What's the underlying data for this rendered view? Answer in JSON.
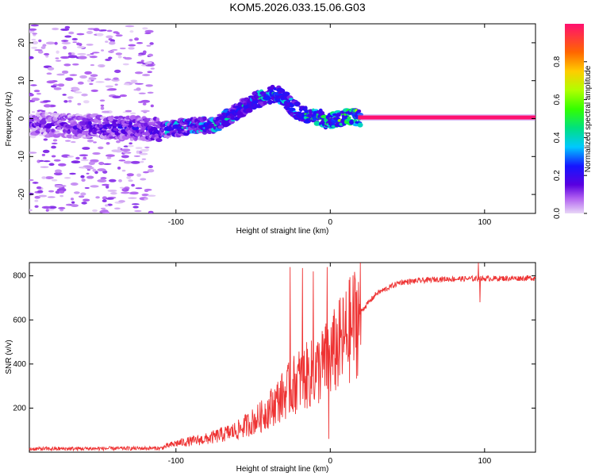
{
  "title": "KOM5.2026.033.15.06.G03",
  "colors": {
    "snr_line": "#ee3333",
    "background": "#ffffff",
    "axis": "#000000"
  },
  "chart_data": [
    {
      "type": "heatmap",
      "name": "spectrogram",
      "xlabel": "Height of straight line (km)",
      "ylabel": "Frequency (Hz)",
      "xlim": [
        -195,
        133
      ],
      "ylim": [
        -25,
        25
      ],
      "xticks": [
        -100,
        0,
        100
      ],
      "xticklabels": [
        "-100",
        "0",
        "100"
      ],
      "yticks": [
        -20,
        -10,
        0,
        10,
        20
      ],
      "yticklabels": [
        "-20",
        "-10",
        "0",
        "10",
        "20"
      ],
      "colorbar": {
        "label": "Normalized spectral amplitude",
        "range": [
          0,
          1
        ],
        "ticks": [
          0,
          0.2,
          0.4,
          0.6,
          0.8
        ],
        "ticklabels": [
          "0.0",
          "0.2",
          "0.4",
          "0.6",
          "0.8"
        ],
        "stops": [
          {
            "v": 0.0,
            "c": "#e9d7f7"
          },
          {
            "v": 0.08,
            "c": "#b060f0"
          },
          {
            "v": 0.15,
            "c": "#5a00e0"
          },
          {
            "v": 0.25,
            "c": "#1515ff"
          },
          {
            "v": 0.35,
            "c": "#00c8ff"
          },
          {
            "v": 0.45,
            "c": "#00e080"
          },
          {
            "v": 0.55,
            "c": "#33ff00"
          },
          {
            "v": 0.65,
            "c": "#b0ff00"
          },
          {
            "v": 0.75,
            "c": "#ffcc00"
          },
          {
            "v": 0.85,
            "c": "#ff6600"
          },
          {
            "v": 1.0,
            "c": "#ff1070"
          }
        ]
      },
      "ridge": [
        {
          "x": -195,
          "f": -1.5
        },
        {
          "x": -160,
          "f": -2
        },
        {
          "x": -130,
          "f": -2.5
        },
        {
          "x": -110,
          "f": -3
        },
        {
          "x": -90,
          "f": -2
        },
        {
          "x": -75,
          "f": -1.5
        },
        {
          "x": -62,
          "f": 1.5
        },
        {
          "x": -52,
          "f": 4
        },
        {
          "x": -42,
          "f": 6
        },
        {
          "x": -34,
          "f": 6.5
        },
        {
          "x": -27,
          "f": 4
        },
        {
          "x": -20,
          "f": 1.5
        },
        {
          "x": -10,
          "f": 0.5
        },
        {
          "x": 0,
          "f": -0.5
        },
        {
          "x": 10,
          "f": 0.5
        },
        {
          "x": 20,
          "f": 0.3
        },
        {
          "x": 133,
          "f": 0.3
        }
      ],
      "tone": {
        "x_start": 18,
        "x_end": 133,
        "f": 0.3,
        "amplitude": 1.0
      }
    },
    {
      "type": "line",
      "name": "snr",
      "xlabel": "Height of straight line (km)",
      "ylabel": "SNR (v/v)",
      "xlim": [
        -195,
        133
      ],
      "ylim": [
        0,
        860
      ],
      "xticks": [
        -100,
        0,
        100
      ],
      "xticklabels": [
        "-100",
        "0",
        "100"
      ],
      "yticks": [
        200,
        400,
        600,
        800
      ],
      "yticklabels": [
        "200",
        "400",
        "600",
        "800"
      ],
      "envelope": [
        {
          "x": -195,
          "y": 15
        },
        {
          "x": -110,
          "y": 18
        },
        {
          "x": -100,
          "y": 40
        },
        {
          "x": -80,
          "y": 60
        },
        {
          "x": -60,
          "y": 100
        },
        {
          "x": -45,
          "y": 160
        },
        {
          "x": -30,
          "y": 260
        },
        {
          "x": -20,
          "y": 330
        },
        {
          "x": -10,
          "y": 360
        },
        {
          "x": 0,
          "y": 430
        },
        {
          "x": 10,
          "y": 520
        },
        {
          "x": 20,
          "y": 640
        },
        {
          "x": 30,
          "y": 720
        },
        {
          "x": 45,
          "y": 770
        },
        {
          "x": 70,
          "y": 785
        },
        {
          "x": 133,
          "y": 790
        }
      ],
      "spikes": [
        {
          "x": -26,
          "y": 840
        },
        {
          "x": -18,
          "y": 835
        },
        {
          "x": -11,
          "y": 820
        },
        {
          "x": -2,
          "y": 840
        },
        {
          "x": -1,
          "y": 60
        },
        {
          "x": 96,
          "y": 870
        },
        {
          "x": 97,
          "y": 680
        }
      ]
    }
  ]
}
